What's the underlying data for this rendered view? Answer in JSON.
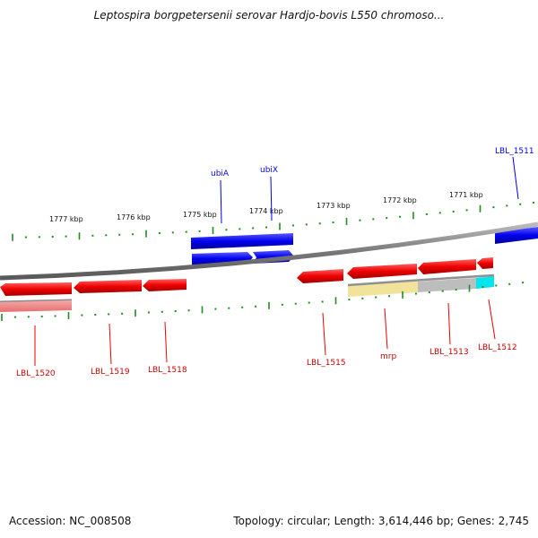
{
  "header": {
    "title": "Leptospira borgpetersenii serovar Hardjo-bovis L550 chromoso..."
  },
  "footer": {
    "accession": "Accession: NC_008508",
    "stats": "Topology: circular; Length: 3,614,446 bp; Genes: 2,745"
  },
  "colors": {
    "forward_gene": "#0000ee",
    "reverse_gene": "#ee0000",
    "pale_reverse_gene": "#f08080",
    "tick": "#228b22",
    "backbone": "#808080",
    "highlight_yellow": "#f2e39a",
    "highlight_gray": "#bdbdbd",
    "highlight_cyan": "#00e5ee"
  },
  "map": {
    "scale_labels": [
      "1777 kbp",
      "1776 kbp",
      "1775 kbp",
      "1774 kbp",
      "1773 kbp",
      "1772 kbp",
      "1771 kbp"
    ],
    "forward_labels": [
      "ubiA",
      "ubiX",
      "LBL_1511"
    ],
    "reverse_labels": [
      "LBL_1520",
      "LBL_1519",
      "LBL_1518",
      "LBL_1515",
      "mrp",
      "LBL_1513",
      "LBL_1512"
    ]
  }
}
